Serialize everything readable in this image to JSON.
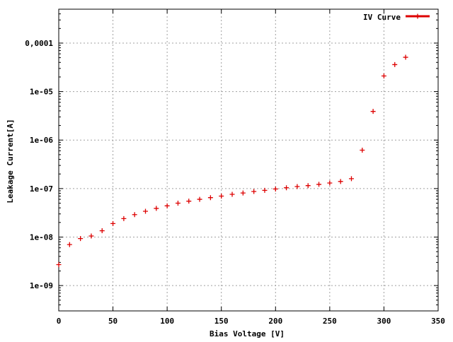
{
  "chart_data": {
    "type": "scatter",
    "xlabel": "Bias Voltage [V]",
    "ylabel": "Leakage Current[A]",
    "xlim": [
      0,
      350
    ],
    "ylim": [
      3e-10,
      0.0005
    ],
    "y_scale": "log",
    "grid": true,
    "legend_position": "top-right",
    "x_ticks": [
      {
        "value": 0,
        "label": "0"
      },
      {
        "value": 50,
        "label": "50"
      },
      {
        "value": 100,
        "label": "100"
      },
      {
        "value": 150,
        "label": "150"
      },
      {
        "value": 200,
        "label": "200"
      },
      {
        "value": 250,
        "label": "250"
      },
      {
        "value": 300,
        "label": "300"
      },
      {
        "value": 350,
        "label": "350"
      }
    ],
    "y_ticks": [
      {
        "value": 1e-09,
        "label": "1e-09"
      },
      {
        "value": 1e-08,
        "label": "1e-08"
      },
      {
        "value": 1e-07,
        "label": "1e-07"
      },
      {
        "value": 1e-06,
        "label": "1e-06"
      },
      {
        "value": 1e-05,
        "label": "1e-05"
      },
      {
        "value": 0.0001,
        "label": "0,0001"
      }
    ],
    "series": [
      {
        "name": "IV Curve",
        "color": "#dd0000",
        "marker": "plus",
        "x": [
          0,
          10,
          20,
          30,
          40,
          50,
          60,
          70,
          80,
          90,
          100,
          110,
          120,
          130,
          140,
          150,
          160,
          170,
          180,
          190,
          200,
          210,
          220,
          230,
          240,
          250,
          260,
          270,
          280,
          290,
          300,
          310,
          320
        ],
        "y": [
          2.7e-09,
          7e-09,
          9.3e-09,
          1.05e-08,
          1.35e-08,
          1.9e-08,
          2.4e-08,
          2.9e-08,
          3.4e-08,
          3.9e-08,
          4.4e-08,
          5e-08,
          5.5e-08,
          6e-08,
          6.5e-08,
          7e-08,
          7.6e-08,
          8.1e-08,
          8.7e-08,
          9.2e-08,
          9.8e-08,
          1.04e-07,
          1.1e-07,
          1.15e-07,
          1.22e-07,
          1.3e-07,
          1.4e-07,
          1.6e-07,
          6.2e-07,
          3.9e-06,
          2.1e-05,
          3.6e-05,
          5.1e-05
        ]
      }
    ]
  }
}
